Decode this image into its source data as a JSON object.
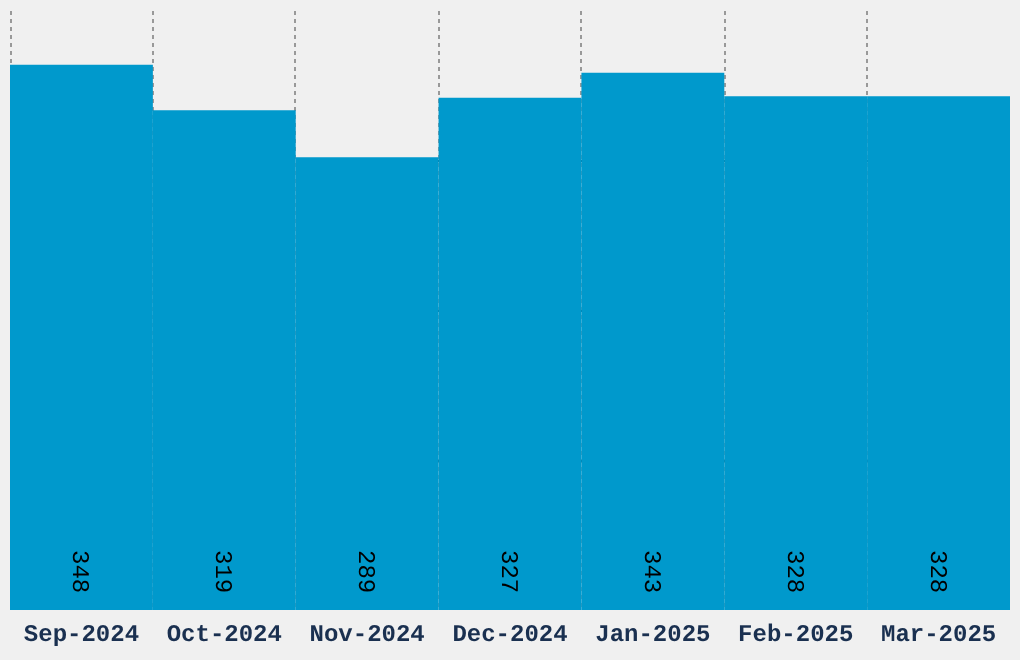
{
  "chart_data": {
    "type": "bar",
    "categories": [
      "Sep-2024",
      "Oct-2024",
      "Nov-2024",
      "Dec-2024",
      "Jan-2025",
      "Feb-2025",
      "Mar-2025"
    ],
    "values": [
      348,
      319,
      289,
      327,
      343,
      328,
      328
    ],
    "color": "#0099cc",
    "data_labels": true,
    "ylim": [
      0,
      383
    ],
    "yticks": [
      {
        "value": 95.75,
        "label": null
      },
      {
        "value": 191.5,
        "label": null
      },
      {
        "value": 287.25,
        "label": null
      }
    ],
    "grid": true
  }
}
